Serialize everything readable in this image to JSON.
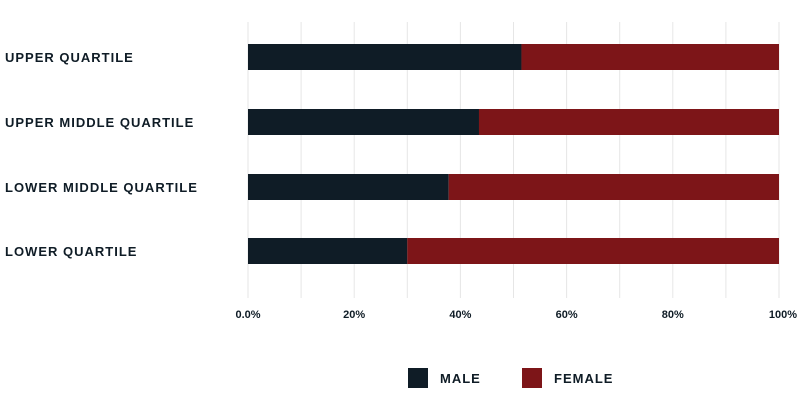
{
  "chart_data": {
    "type": "bar",
    "orientation": "horizontal",
    "stacked": true,
    "categories": [
      "UPPER QUARTILE",
      "UPPER MIDDLE QUARTILE",
      "LOWER MIDDLE QUARTILE",
      "LOWER QUARTILE"
    ],
    "series": [
      {
        "name": "MALE",
        "color": "#0f1c26",
        "values": [
          51.5,
          43.5,
          37.8,
          30.0
        ]
      },
      {
        "name": "FEMALE",
        "color": "#7d1518",
        "values": [
          48.5,
          56.5,
          62.2,
          70.0
        ]
      }
    ],
    "x_ticks": [
      "0.0%",
      "20%",
      "40%",
      "60%",
      "80%",
      "100%"
    ],
    "xlim": [
      0,
      100
    ],
    "grid": true,
    "legend_position": "bottom-center",
    "title": "",
    "xlabel": "",
    "ylabel": ""
  }
}
